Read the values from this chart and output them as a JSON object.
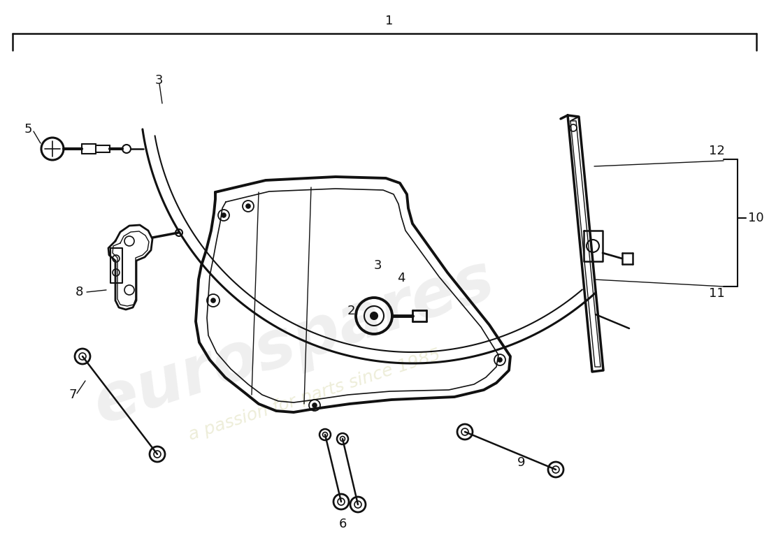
{
  "background_color": "#ffffff",
  "line_color": "#111111",
  "fig_width": 11.0,
  "fig_height": 8.0,
  "dpi": 100,
  "label_fontsize": 13,
  "watermark_euro_color": "#cccccc",
  "watermark_text_color": "#d8d8a8"
}
